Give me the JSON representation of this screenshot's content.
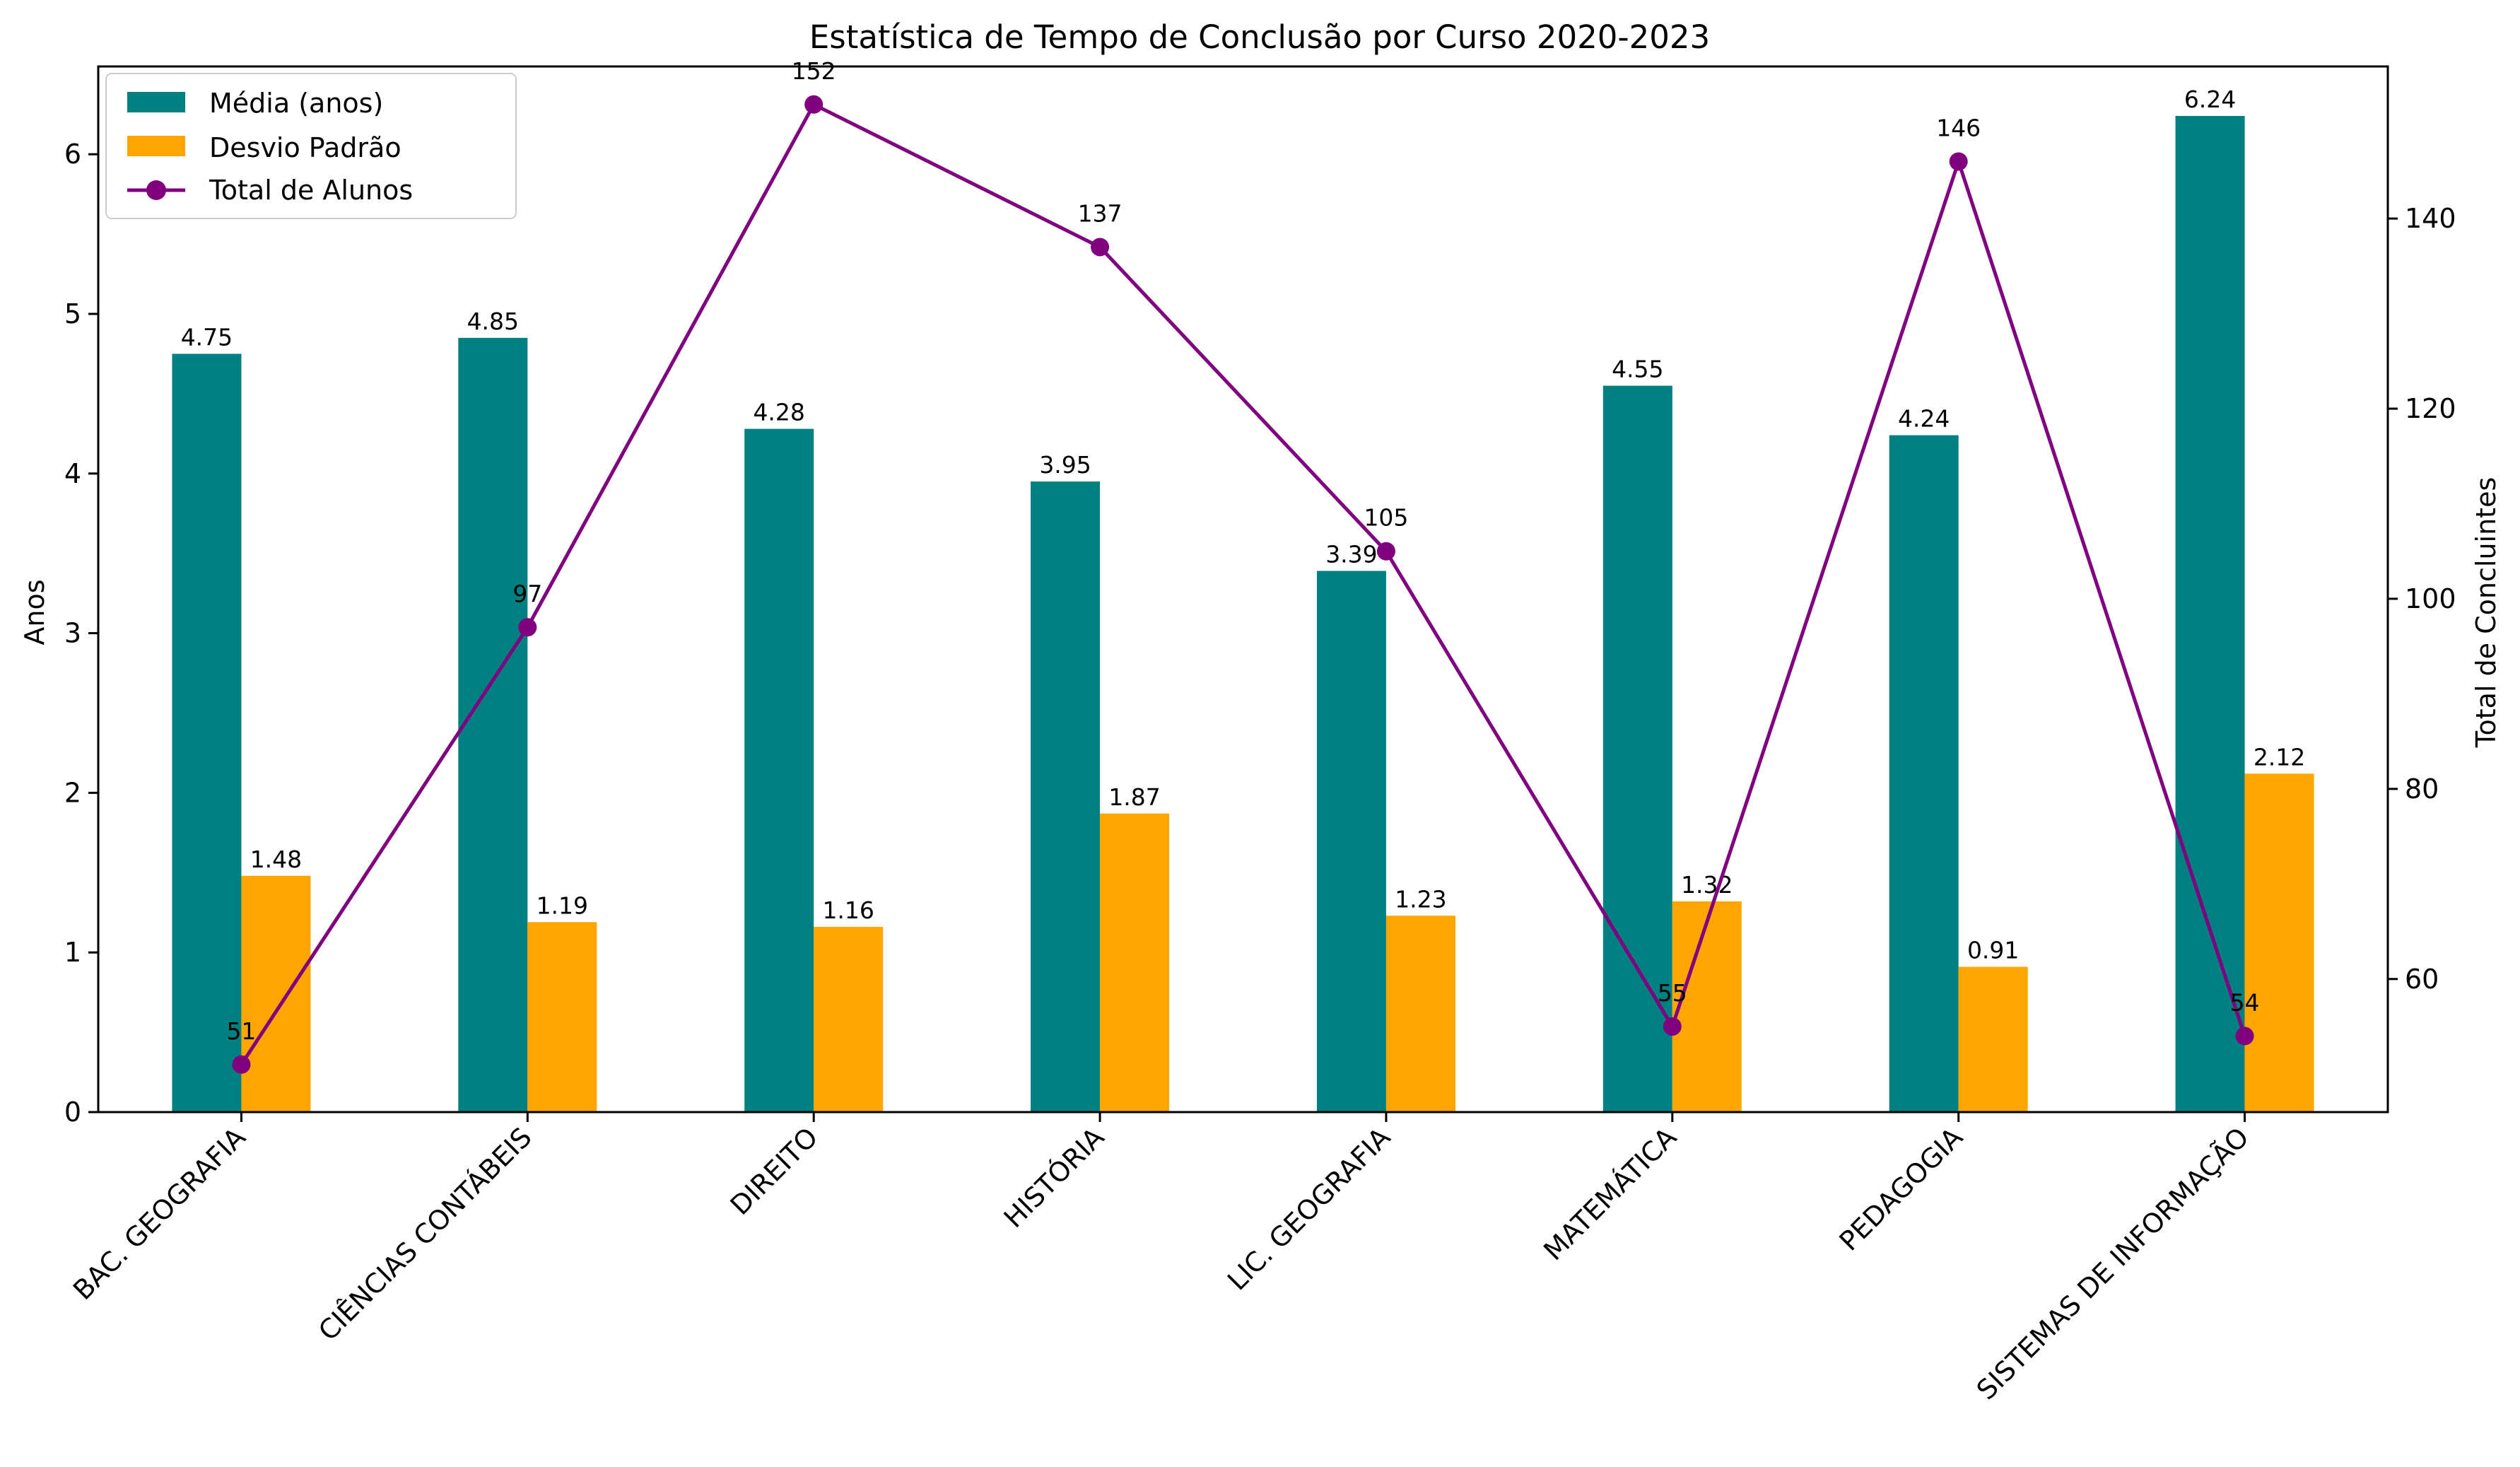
{
  "chart_data": {
    "type": "bar",
    "title": "Estatística de Tempo de Conclusão por Curso 2020-2023",
    "xlabel": "",
    "ylabel": "Anos",
    "y2label": "Total de Concluintes",
    "categories": [
      "BAC. GEOGRAFIA",
      "CIÊNCIAS CONTÁBEIS",
      "DIREITO",
      "HISTÓRIA",
      "LIC. GEOGRAFIA",
      "MATEMÁTICA",
      "PEDAGOGIA",
      "SISTEMAS DE INFORMAÇÃO"
    ],
    "series": [
      {
        "name": "Média (anos)",
        "type": "bar",
        "axis": "left",
        "color": "#008080",
        "values": [
          4.75,
          4.85,
          4.28,
          3.95,
          3.39,
          4.55,
          4.24,
          6.24
        ]
      },
      {
        "name": "Desvio Padrão",
        "type": "bar",
        "axis": "left",
        "color": "#FFA500",
        "values": [
          1.48,
          1.19,
          1.16,
          1.87,
          1.23,
          1.32,
          0.91,
          2.12
        ]
      },
      {
        "name": "Total de Alunos",
        "type": "line",
        "axis": "right",
        "color": "#800080",
        "marker": "circle",
        "values": [
          51,
          97,
          152,
          137,
          105,
          55,
          146,
          54
        ]
      }
    ],
    "ylim": [
      0,
      6.55
    ],
    "yticks": [
      0,
      1,
      2,
      3,
      4,
      5,
      6
    ],
    "y2lim": [
      46,
      156
    ],
    "y2ticks": [
      60,
      80,
      100,
      120,
      140
    ],
    "grid": false,
    "legend": "top-left"
  }
}
